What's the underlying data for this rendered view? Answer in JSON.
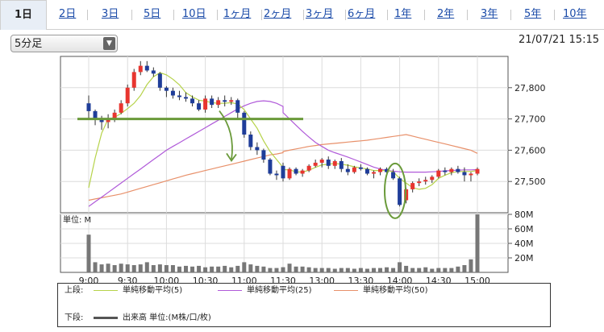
{
  "tabs": [
    "1日",
    "2日",
    "3日",
    "5日",
    "10日",
    "1ヶ月",
    "2ヶ月",
    "3ヶ月",
    "6ヶ月",
    "1年",
    "2年",
    "3年",
    "5年",
    "10年"
  ],
  "interval_select": {
    "value": "5分足"
  },
  "timestamp": "21/07/21 15:15",
  "volume_unit_label": "単位: M",
  "legend": {
    "upper_label": "上段:",
    "lower_label": "下段:",
    "ma5": "単純移動平均(5)",
    "ma25": "単純移動平均(25)",
    "ma50": "単純移動平均(50)",
    "volume": "出来高 単位:(M株/口/枚)"
  },
  "colors": {
    "up": "#e8352f",
    "down": "#1f3d99",
    "ma5": "#b6d34a",
    "ma25": "#b05ad9",
    "ma50": "#e8906a",
    "volume": "#777777",
    "annotation": "#6a9a3a"
  },
  "chart_data": {
    "type": "candlestick",
    "interval": "5min",
    "price_ylim": [
      27400,
      27900
    ],
    "price_yticks": [
      "27,800",
      "27,700",
      "27,600",
      "27,500"
    ],
    "price_ytick_values": [
      27800,
      27700,
      27600,
      27500
    ],
    "volume_ylim": [
      0,
      80
    ],
    "volume_yticks": [
      "80M",
      "60M",
      "40M",
      "20M"
    ],
    "volume_ytick_values": [
      80,
      60,
      40,
      20
    ],
    "x_ticks": [
      "9:00",
      "9:30",
      "10:00",
      "10:30",
      "11:00",
      "11:30",
      "13:00",
      "13:30",
      "14:00",
      "14:30",
      "15:00"
    ],
    "x_tick_times": [
      "09:00",
      "09:30",
      "10:00",
      "10:30",
      "11:00",
      "11:30",
      "13:00",
      "13:30",
      "14:00",
      "14:30",
      "15:00"
    ],
    "times": [
      "09:00",
      "09:05",
      "09:10",
      "09:15",
      "09:20",
      "09:25",
      "09:30",
      "09:35",
      "09:40",
      "09:45",
      "09:50",
      "09:55",
      "10:00",
      "10:05",
      "10:10",
      "10:15",
      "10:20",
      "10:25",
      "10:30",
      "10:35",
      "10:40",
      "10:45",
      "10:50",
      "10:55",
      "11:00",
      "11:05",
      "11:10",
      "11:15",
      "11:20",
      "11:25",
      "11:30",
      "12:30",
      "12:35",
      "12:40",
      "12:45",
      "12:50",
      "12:55",
      "13:00",
      "13:05",
      "13:10",
      "13:15",
      "13:20",
      "13:25",
      "13:30",
      "13:35",
      "13:40",
      "13:45",
      "13:50",
      "13:55",
      "14:00",
      "14:05",
      "14:10",
      "14:15",
      "14:20",
      "14:25",
      "14:30",
      "14:35",
      "14:40",
      "14:45",
      "14:50",
      "14:55",
      "15:00"
    ],
    "candles": [
      [
        27750,
        27775,
        27700,
        27725
      ],
      [
        27725,
        27730,
        27680,
        27700
      ],
      [
        27700,
        27710,
        27665,
        27690
      ],
      [
        27690,
        27715,
        27670,
        27700
      ],
      [
        27700,
        27730,
        27690,
        27720
      ],
      [
        27720,
        27760,
        27715,
        27750
      ],
      [
        27750,
        27810,
        27740,
        27800
      ],
      [
        27800,
        27860,
        27790,
        27850
      ],
      [
        27850,
        27885,
        27840,
        27870
      ],
      [
        27870,
        27885,
        27850,
        27855
      ],
      [
        27855,
        27865,
        27835,
        27845
      ],
      [
        27845,
        27850,
        27790,
        27800
      ],
      [
        27800,
        27805,
        27770,
        27790
      ],
      [
        27790,
        27800,
        27765,
        27775
      ],
      [
        27775,
        27790,
        27760,
        27770
      ],
      [
        27770,
        27785,
        27755,
        27765
      ],
      [
        27765,
        27775,
        27740,
        27750
      ],
      [
        27750,
        27760,
        27725,
        27730
      ],
      [
        27730,
        27775,
        27720,
        27765
      ],
      [
        27765,
        27775,
        27735,
        27745
      ],
      [
        27745,
        27770,
        27735,
        27760
      ],
      [
        27760,
        27775,
        27740,
        27755
      ],
      [
        27755,
        27770,
        27745,
        27760
      ],
      [
        27760,
        27765,
        27700,
        27720
      ],
      [
        27720,
        27725,
        27640,
        27650
      ],
      [
        27650,
        27660,
        27600,
        27610
      ],
      [
        27610,
        27625,
        27585,
        27600
      ],
      [
        27600,
        27605,
        27560,
        27570
      ],
      [
        27570,
        27575,
        27520,
        27525
      ],
      [
        27525,
        27535,
        27505,
        27520
      ],
      [
        27520,
        27530,
        27515,
        27525
      ],
      [
        27550,
        27560,
        27500,
        27510
      ],
      [
        27510,
        27545,
        27505,
        27540
      ],
      [
        27540,
        27545,
        27520,
        27525
      ],
      [
        27525,
        27540,
        27515,
        27535
      ],
      [
        27535,
        27555,
        27530,
        27550
      ],
      [
        27550,
        27570,
        27545,
        27560
      ],
      [
        27560,
        27575,
        27545,
        27570
      ],
      [
        27570,
        27580,
        27540,
        27550
      ],
      [
        27550,
        27570,
        27540,
        27565
      ],
      [
        27565,
        27575,
        27530,
        27540
      ],
      [
        27540,
        27555,
        27520,
        27530
      ],
      [
        27530,
        27550,
        27525,
        27545
      ],
      [
        27545,
        27555,
        27535,
        27540
      ],
      [
        27540,
        27545,
        27520,
        27525
      ],
      [
        27525,
        27535,
        27510,
        27530
      ],
      [
        27530,
        27545,
        27520,
        27540
      ],
      [
        27540,
        27545,
        27520,
        27530
      ],
      [
        27530,
        27540,
        27505,
        27510
      ],
      [
        27510,
        27515,
        27420,
        27425
      ],
      [
        27440,
        27480,
        27430,
        27475
      ],
      [
        27475,
        27500,
        27465,
        27495
      ],
      [
        27495,
        27510,
        27485,
        27500
      ],
      [
        27500,
        27515,
        27490,
        27505
      ],
      [
        27505,
        27520,
        27495,
        27515
      ],
      [
        27515,
        27540,
        27510,
        27535
      ],
      [
        27535,
        27545,
        27520,
        27530
      ],
      [
        27530,
        27545,
        27520,
        27540
      ],
      [
        27540,
        27550,
        27525,
        27530
      ],
      [
        27530,
        27545,
        27500,
        27520
      ],
      [
        27520,
        27530,
        27500,
        27525
      ],
      [
        27525,
        27545,
        27520,
        27540
      ]
    ],
    "volume": [
      52,
      14,
      11,
      12,
      10,
      12,
      11,
      10,
      11,
      14,
      10,
      11,
      10,
      10,
      8,
      9,
      8,
      9,
      7,
      8,
      8,
      9,
      7,
      9,
      14,
      11,
      9,
      8,
      6,
      6,
      7,
      7,
      12,
      8,
      8,
      7,
      6,
      6,
      6,
      5,
      6,
      6,
      5,
      6,
      5,
      6,
      6,
      7,
      6,
      14,
      9,
      6,
      6,
      7,
      5,
      6,
      6,
      6,
      8,
      10,
      18,
      80
    ],
    "ma5": [
      27480,
      27575,
      27655,
      27700,
      27705,
      27718,
      27733,
      27750,
      27775,
      27810,
      27835,
      27848,
      27841,
      27827,
      27809,
      27784,
      27771,
      27760,
      27757,
      27752,
      27750,
      27750,
      27752,
      27748,
      27730,
      27700,
      27670,
      27630,
      27596,
      27570,
      27545,
      27538,
      27537,
      27531,
      27530,
      27536,
      27545,
      27553,
      27555,
      27558,
      27555,
      27552,
      27547,
      27543,
      27540,
      27535,
      27535,
      27535,
      27531,
      27510,
      27495,
      27480,
      27475,
      27478,
      27490,
      27510,
      27520,
      27528,
      27532,
      27532,
      27532,
      27535
    ],
    "ma25": [
      27420,
      27435,
      27450,
      27465,
      27480,
      27495,
      27510,
      27525,
      27540,
      27555,
      27570,
      27585,
      27600,
      27612,
      27624,
      27636,
      27648,
      27660,
      27672,
      27684,
      27696,
      27708,
      27720,
      27732,
      27742,
      27750,
      27756,
      27758,
      27756,
      27750,
      27740,
      27720,
      27700,
      27680,
      27660,
      27642,
      27625,
      27612,
      27600,
      27592,
      27585,
      27578,
      27570,
      27562,
      27554,
      27546,
      27540,
      27535,
      27533,
      27531,
      27530,
      27530,
      27530,
      27530,
      27531,
      27532,
      27534,
      27535,
      27536,
      27537,
      27537,
      27538
    ],
    "ma50": [
      27440,
      27444,
      27448,
      27452,
      27456,
      27460,
      27466,
      27472,
      27478,
      27484,
      27490,
      27496,
      27502,
      27508,
      27514,
      27520,
      27525,
      27530,
      27535,
      27540,
      27545,
      27550,
      27555,
      27560,
      27565,
      27570,
      27575,
      27580,
      27585,
      27588,
      27592,
      27596,
      27600,
      27604,
      27608,
      27612,
      27615,
      27618,
      27620,
      27622,
      27624,
      27626,
      27628,
      27630,
      27632,
      27635,
      27638,
      27641,
      27644,
      27647,
      27650,
      27645,
      27640,
      27635,
      27630,
      27625,
      27620,
      27615,
      27610,
      27605,
      27600,
      27590
    ]
  }
}
